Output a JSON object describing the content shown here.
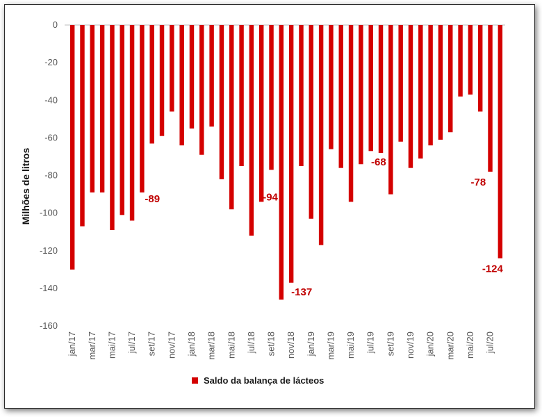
{
  "chart_data": {
    "type": "bar",
    "title": "",
    "ylabel": "Milhões de litros",
    "xlabel": "",
    "ylim": [
      -160,
      0
    ],
    "yticks": [
      0,
      -20,
      -40,
      -60,
      -80,
      -100,
      -120,
      -140,
      -160
    ],
    "categories": [
      "jan/17",
      "fev/17",
      "mar/17",
      "abr/17",
      "mai/17",
      "jun/17",
      "jul/17",
      "ago/17",
      "set/17",
      "out/17",
      "nov/17",
      "dez/17",
      "jan/18",
      "fev/18",
      "mar/18",
      "abr/18",
      "mai/18",
      "jun/18",
      "jul/18",
      "ago/18",
      "set/18",
      "out/18",
      "nov/18",
      "dez/18",
      "jan/19",
      "fev/19",
      "mar/19",
      "abr/19",
      "mai/19",
      "jun/19",
      "jul/19",
      "ago/19",
      "set/19",
      "out/19",
      "nov/19",
      "dez/19",
      "jan/20",
      "fev/20",
      "mar/20",
      "abr/20",
      "mai/20",
      "jun/20",
      "jul/20",
      "ago/20"
    ],
    "tick_labels": [
      "jan/17",
      "mar/17",
      "mai/17",
      "jul/17",
      "set/17",
      "nov/17",
      "jan/18",
      "mar/18",
      "mai/18",
      "jul/18",
      "set/18",
      "nov/18",
      "jan/19",
      "mar/19",
      "mai/19",
      "jul/19",
      "set/19",
      "nov/19",
      "jan/20",
      "mar/20",
      "mai/20",
      "jul/20"
    ],
    "series": [
      {
        "name": "Saldo da balança de lácteos",
        "color": "#d40000",
        "values": [
          -130,
          -107,
          -89,
          -89,
          -109,
          -101,
          -104,
          -89,
          -63,
          -59,
          -46,
          -64,
          -55,
          -69,
          -54,
          -82,
          -98,
          -75,
          -112,
          -94,
          -77,
          -146,
          -137,
          -75,
          -103,
          -117,
          -66,
          -76,
          -94,
          -74,
          -67,
          -68,
          -90,
          -62,
          -76,
          -71,
          -64,
          -61,
          -57,
          -38,
          -37,
          -46,
          -78,
          -124
        ]
      }
    ],
    "data_labels": [
      {
        "index": 7,
        "text": "-89"
      },
      {
        "index": 19,
        "text": "-94"
      },
      {
        "index": 22,
        "text": "-137"
      },
      {
        "index": 31,
        "text": "-68"
      },
      {
        "index": 42,
        "text": "-78"
      },
      {
        "index": 43,
        "text": "-124"
      }
    ],
    "legend": {
      "position": "bottom",
      "label": "Saldo da balança de lácteos"
    },
    "grid": false
  }
}
